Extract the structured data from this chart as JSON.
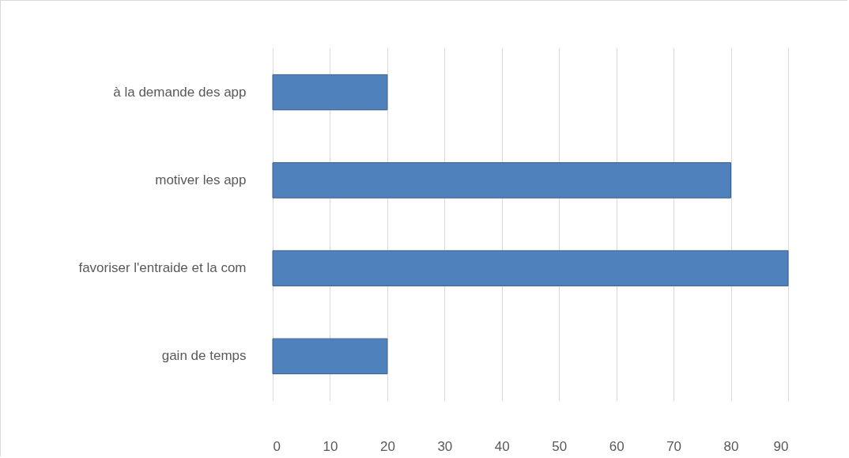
{
  "chart_data": {
    "type": "bar",
    "orientation": "horizontal",
    "categories": [
      "à la demande des app",
      "motiver les app",
      "favoriser l'entraide et la com",
      "gain de temps"
    ],
    "values": [
      20,
      80,
      90,
      20
    ],
    "color": "#4f81bd",
    "xlim": [
      0,
      90
    ],
    "xticks": [
      0,
      10,
      20,
      30,
      40,
      50,
      60,
      70,
      80,
      90
    ],
    "grid": "x"
  }
}
